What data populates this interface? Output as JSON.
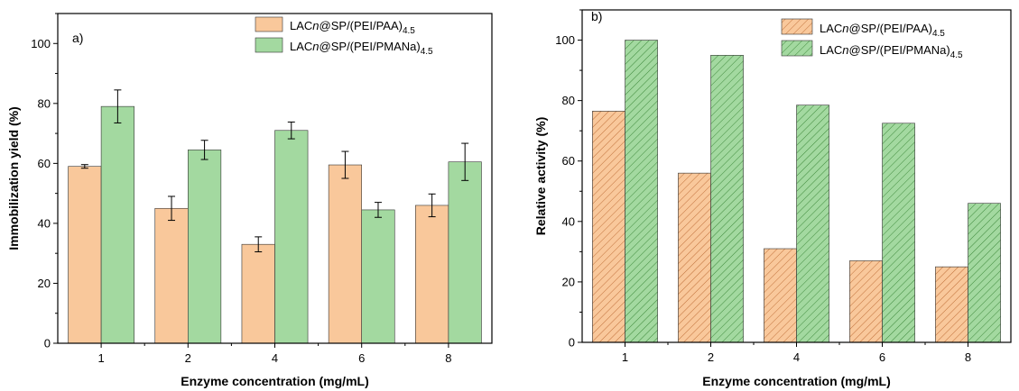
{
  "chart_data": [
    {
      "type": "bar",
      "panel_label": "a)",
      "categories": [
        "1",
        "2",
        "4",
        "6",
        "8"
      ],
      "xlabel": "Enzyme concentration (mg/mL)",
      "ylabel": "Immobilization yield (%)",
      "ylim": [
        0,
        110
      ],
      "yticks": [
        0,
        20,
        40,
        60,
        80,
        100
      ],
      "grid": false,
      "legend_position": "top-right",
      "series": [
        {
          "name": "LACn@SP/(PEI/PAA)4.5",
          "name_parts": {
            "pre": "LAC",
            "ital": "n",
            "post": "@SP/(PEI/PAA)",
            "sub": "4.5"
          },
          "values": [
            59,
            45,
            33,
            59.5,
            46
          ],
          "errors": [
            0.6,
            4,
            2.5,
            4.5,
            3.8
          ],
          "color": "#f9c89b",
          "pattern": "solid"
        },
        {
          "name": "LACn@SP/(PEI/PMANa)4.5",
          "name_parts": {
            "pre": "LAC",
            "ital": "n",
            "post": "@SP/(PEI/PMANa)",
            "sub": "4.5"
          },
          "values": [
            79,
            64.5,
            71,
            44.5,
            60.5
          ],
          "errors": [
            5.5,
            3.2,
            2.8,
            2.5,
            6.2
          ],
          "color": "#a3d9a0",
          "pattern": "solid"
        }
      ]
    },
    {
      "type": "bar",
      "panel_label": "b)",
      "categories": [
        "1",
        "2",
        "4",
        "6",
        "8"
      ],
      "xlabel": "Enzyme concentration (mg/mL)",
      "ylabel": "Relative activity (%)",
      "ylim": [
        0,
        110
      ],
      "yticks": [
        0,
        20,
        40,
        60,
        80,
        100
      ],
      "grid": false,
      "legend_position": "top-right",
      "series": [
        {
          "name": "LACn@SP/(PEI/PAA)4.5",
          "name_parts": {
            "pre": "LAC",
            "ital": "n",
            "post": "@SP/(PEI/PAA)",
            "sub": "4.5"
          },
          "values": [
            76.5,
            56,
            31,
            27,
            25
          ],
          "color": "#f9c89b",
          "pattern": "hatch"
        },
        {
          "name": "LACn@SP/(PEI/PMANa)4.5",
          "name_parts": {
            "pre": "LAC",
            "ital": "n",
            "post": "@SP/(PEI/PMANa)",
            "sub": "4.5"
          },
          "values": [
            100,
            95,
            78.5,
            72.5,
            46
          ],
          "color": "#a3d9a0",
          "pattern": "hatch"
        }
      ]
    }
  ]
}
